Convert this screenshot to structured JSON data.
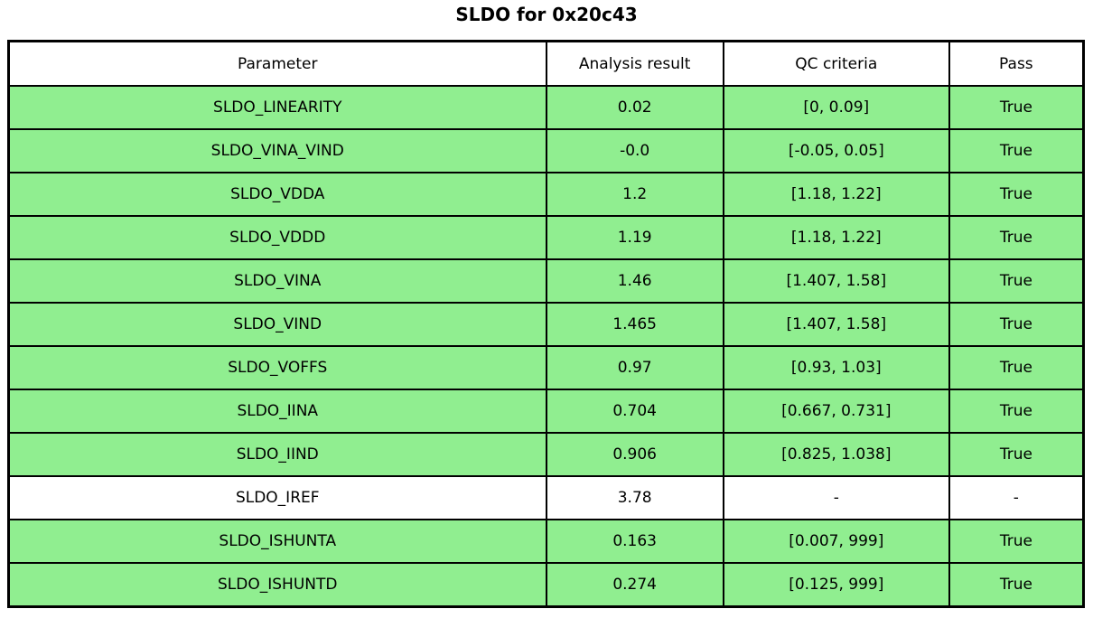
{
  "chart_data": {
    "type": "table",
    "title": "SLDO for 0x20c43",
    "columns": [
      "Parameter",
      "Analysis result",
      "QC criteria",
      "Pass"
    ],
    "rows": [
      {
        "parameter": "SLDO_LINEARITY",
        "result": "0.02",
        "criteria": "[0, 0.09]",
        "pass": "True",
        "highlight": true
      },
      {
        "parameter": "SLDO_VINA_VIND",
        "result": "-0.0",
        "criteria": "[-0.05, 0.05]",
        "pass": "True",
        "highlight": true
      },
      {
        "parameter": "SLDO_VDDA",
        "result": "1.2",
        "criteria": "[1.18, 1.22]",
        "pass": "True",
        "highlight": true
      },
      {
        "parameter": "SLDO_VDDD",
        "result": "1.19",
        "criteria": "[1.18, 1.22]",
        "pass": "True",
        "highlight": true
      },
      {
        "parameter": "SLDO_VINA",
        "result": "1.46",
        "criteria": "[1.407, 1.58]",
        "pass": "True",
        "highlight": true
      },
      {
        "parameter": "SLDO_VIND",
        "result": "1.465",
        "criteria": "[1.407, 1.58]",
        "pass": "True",
        "highlight": true
      },
      {
        "parameter": "SLDO_VOFFS",
        "result": "0.97",
        "criteria": "[0.93, 1.03]",
        "pass": "True",
        "highlight": true
      },
      {
        "parameter": "SLDO_IINA",
        "result": "0.704",
        "criteria": "[0.667, 0.731]",
        "pass": "True",
        "highlight": true
      },
      {
        "parameter": "SLDO_IIND",
        "result": "0.906",
        "criteria": "[0.825, 1.038]",
        "pass": "True",
        "highlight": true
      },
      {
        "parameter": "SLDO_IREF",
        "result": "3.78",
        "criteria": "-",
        "pass": "-",
        "highlight": false
      },
      {
        "parameter": "SLDO_ISHUNTA",
        "result": "0.163",
        "criteria": "[0.007, 999]",
        "pass": "True",
        "highlight": true
      },
      {
        "parameter": "SLDO_ISHUNTD",
        "result": "0.274",
        "criteria": "[0.125, 999]",
        "pass": "True",
        "highlight": true
      }
    ],
    "layout": {
      "legend": false,
      "grid": "full-cell-borders",
      "column_width_fractions": [
        0.5,
        0.165,
        0.21,
        0.125
      ]
    }
  },
  "colors": {
    "pass_row": "#90EE90",
    "neutral_row": "#FFFFFF",
    "border": "#000000",
    "text": "#000000"
  }
}
